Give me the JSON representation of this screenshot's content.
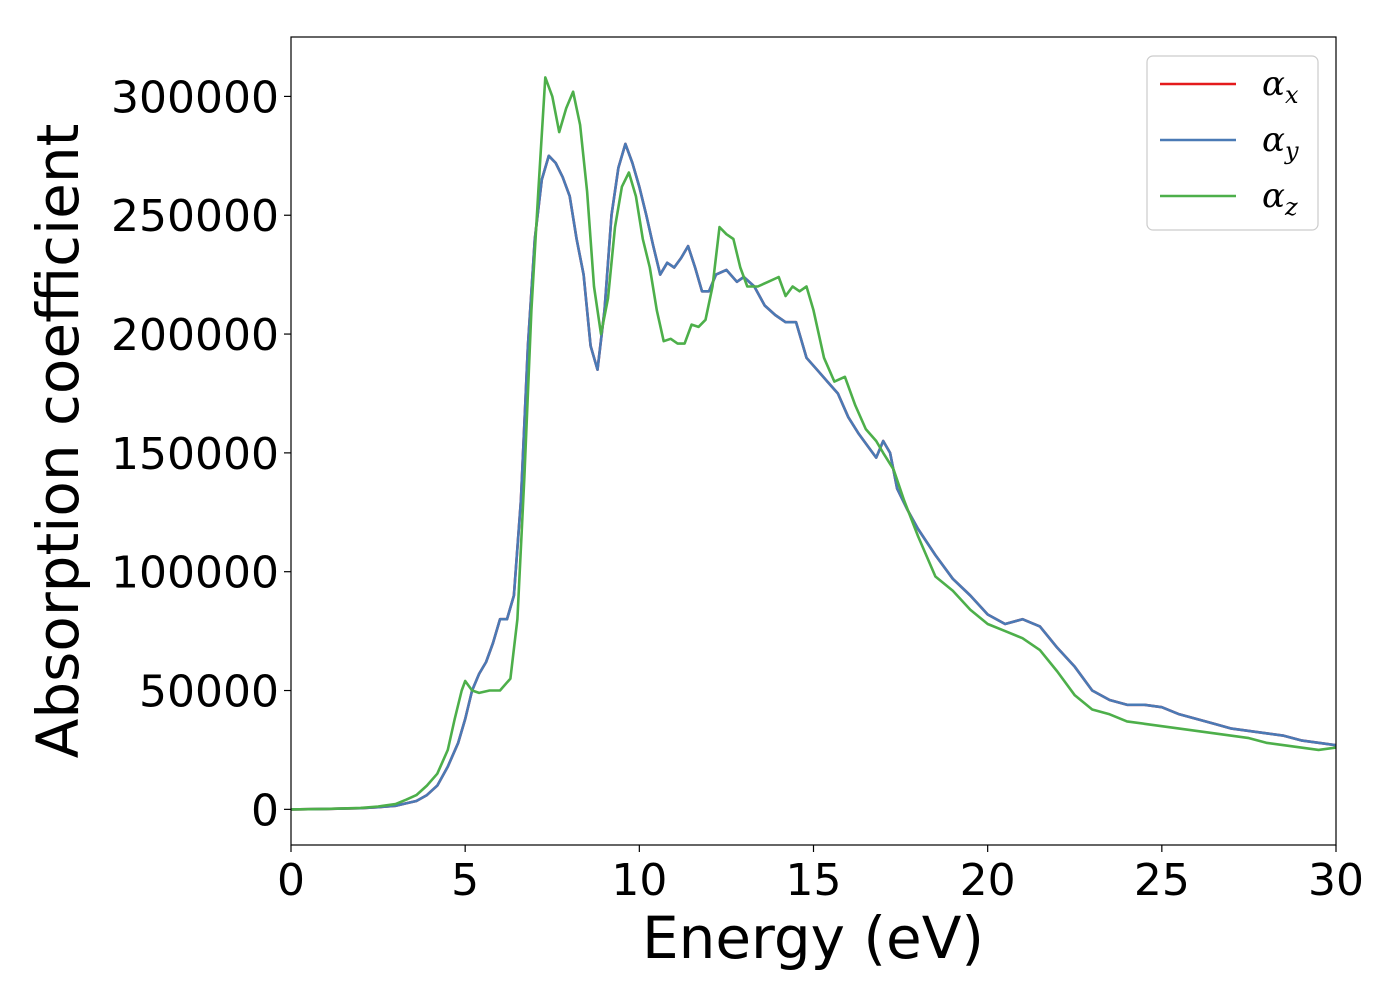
{
  "chart_data": {
    "type": "line",
    "xlabel": "Energy (eV)",
    "ylabel": "Absorption coefficient",
    "xlim": [
      0,
      30
    ],
    "ylim": [
      -15000,
      325000
    ],
    "xticks": [
      0,
      5,
      10,
      15,
      20,
      25,
      30
    ],
    "xtick_labels": [
      "0",
      "5",
      "10",
      "15",
      "20",
      "25",
      "30"
    ],
    "yticks": [
      0,
      50000,
      100000,
      150000,
      200000,
      250000,
      300000
    ],
    "ytick_labels": [
      "0",
      "50000",
      "100000",
      "150000",
      "200000",
      "250000",
      "300000"
    ],
    "grid": false,
    "legend_position": "top-right",
    "series": [
      {
        "name": "α_x",
        "legend_symbol": "α",
        "legend_sub": "x",
        "color": "#e41a1c",
        "x": [
          0,
          1,
          2,
          2.5,
          3,
          3.3,
          3.6,
          3.9,
          4.2,
          4.5,
          4.8,
          5.0,
          5.2,
          5.4,
          5.6,
          5.8,
          6.0,
          6.2,
          6.4,
          6.6,
          6.8,
          7.0,
          7.2,
          7.4,
          7.6,
          7.8,
          8.0,
          8.2,
          8.4,
          8.6,
          8.8,
          9.0,
          9.2,
          9.4,
          9.6,
          9.8,
          10.0,
          10.2,
          10.4,
          10.6,
          10.8,
          11.0,
          11.2,
          11.4,
          11.6,
          11.8,
          12.0,
          12.2,
          12.5,
          12.8,
          13.0,
          13.3,
          13.6,
          13.9,
          14.2,
          14.5,
          14.8,
          15.1,
          15.4,
          15.7,
          16.0,
          16.3,
          16.6,
          16.8,
          17.0,
          17.2,
          17.4,
          17.7,
          18.0,
          18.5,
          19.0,
          19.5,
          20.0,
          20.5,
          21.0,
          21.5,
          22.0,
          22.5,
          23.0,
          23.5,
          24.0,
          24.5,
          25.0,
          25.5,
          26.0,
          26.5,
          27.0,
          27.5,
          28.0,
          28.5,
          29.0,
          29.5,
          30.0
        ],
        "values": [
          0,
          200,
          500,
          900,
          1500,
          2500,
          3500,
          6000,
          10000,
          18000,
          28000,
          38000,
          50000,
          57000,
          62000,
          70000,
          80000,
          80000,
          90000,
          130000,
          195000,
          240000,
          265000,
          275000,
          272000,
          266000,
          258000,
          240000,
          225000,
          195000,
          185000,
          210000,
          250000,
          270000,
          280000,
          272000,
          262000,
          250000,
          237000,
          225000,
          230000,
          228000,
          232000,
          237000,
          228000,
          218000,
          218000,
          225000,
          227000,
          222000,
          224000,
          220000,
          212000,
          208000,
          205000,
          205000,
          190000,
          185000,
          180000,
          175000,
          165000,
          158000,
          152000,
          148000,
          155000,
          150000,
          135000,
          126000,
          118000,
          107000,
          97000,
          90000,
          82000,
          78000,
          80000,
          77000,
          68000,
          60000,
          50000,
          46000,
          44000,
          44000,
          43000,
          40000,
          38000,
          36000,
          34000,
          33000,
          32000,
          31000,
          29000,
          28000,
          27000
        ]
      },
      {
        "name": "α_y",
        "legend_symbol": "α",
        "legend_sub": "y",
        "color": "#4a7ab5",
        "x": [
          0,
          1,
          2,
          2.5,
          3,
          3.3,
          3.6,
          3.9,
          4.2,
          4.5,
          4.8,
          5.0,
          5.2,
          5.4,
          5.6,
          5.8,
          6.0,
          6.2,
          6.4,
          6.6,
          6.8,
          7.0,
          7.2,
          7.4,
          7.6,
          7.8,
          8.0,
          8.2,
          8.4,
          8.6,
          8.8,
          9.0,
          9.2,
          9.4,
          9.6,
          9.8,
          10.0,
          10.2,
          10.4,
          10.6,
          10.8,
          11.0,
          11.2,
          11.4,
          11.6,
          11.8,
          12.0,
          12.2,
          12.5,
          12.8,
          13.0,
          13.3,
          13.6,
          13.9,
          14.2,
          14.5,
          14.8,
          15.1,
          15.4,
          15.7,
          16.0,
          16.3,
          16.6,
          16.8,
          17.0,
          17.2,
          17.4,
          17.7,
          18.0,
          18.5,
          19.0,
          19.5,
          20.0,
          20.5,
          21.0,
          21.5,
          22.0,
          22.5,
          23.0,
          23.5,
          24.0,
          24.5,
          25.0,
          25.5,
          26.0,
          26.5,
          27.0,
          27.5,
          28.0,
          28.5,
          29.0,
          29.5,
          30.0
        ],
        "values": [
          0,
          200,
          500,
          900,
          1500,
          2500,
          3500,
          6000,
          10000,
          18000,
          28000,
          38000,
          50000,
          57000,
          62000,
          70000,
          80000,
          80000,
          90000,
          130000,
          195000,
          240000,
          265000,
          275000,
          272000,
          266000,
          258000,
          240000,
          225000,
          195000,
          185000,
          210000,
          250000,
          270000,
          280000,
          272000,
          262000,
          250000,
          237000,
          225000,
          230000,
          228000,
          232000,
          237000,
          228000,
          218000,
          218000,
          225000,
          227000,
          222000,
          224000,
          220000,
          212000,
          208000,
          205000,
          205000,
          190000,
          185000,
          180000,
          175000,
          165000,
          158000,
          152000,
          148000,
          155000,
          150000,
          135000,
          126000,
          118000,
          107000,
          97000,
          90000,
          82000,
          78000,
          80000,
          77000,
          68000,
          60000,
          50000,
          46000,
          44000,
          44000,
          43000,
          40000,
          38000,
          36000,
          34000,
          33000,
          32000,
          31000,
          29000,
          28000,
          27000
        ]
      },
      {
        "name": "α_z",
        "legend_symbol": "α",
        "legend_sub": "z",
        "color": "#4daf4a",
        "x": [
          0,
          1,
          2,
          2.5,
          3,
          3.3,
          3.6,
          3.9,
          4.2,
          4.5,
          4.7,
          4.9,
          5.0,
          5.2,
          5.4,
          5.7,
          6.0,
          6.3,
          6.5,
          6.7,
          6.9,
          7.1,
          7.3,
          7.5,
          7.7,
          7.9,
          8.1,
          8.3,
          8.5,
          8.7,
          8.9,
          9.1,
          9.3,
          9.5,
          9.7,
          9.9,
          10.1,
          10.3,
          10.5,
          10.7,
          10.9,
          11.1,
          11.3,
          11.5,
          11.7,
          11.9,
          12.1,
          12.3,
          12.5,
          12.7,
          12.9,
          13.1,
          13.4,
          13.7,
          14.0,
          14.2,
          14.4,
          14.6,
          14.8,
          15.0,
          15.3,
          15.6,
          15.9,
          16.2,
          16.5,
          16.8,
          17.0,
          17.3,
          17.6,
          18.0,
          18.5,
          19.0,
          19.5,
          20.0,
          20.5,
          21.0,
          21.5,
          22.0,
          22.5,
          23.0,
          23.5,
          24.0,
          24.5,
          25.0,
          25.5,
          26.0,
          26.5,
          27.0,
          27.5,
          28.0,
          28.5,
          29.0,
          29.5,
          30.0
        ],
        "values": [
          0,
          200,
          600,
          1200,
          2200,
          4000,
          6000,
          10000,
          15000,
          25000,
          38000,
          50000,
          54000,
          50000,
          49000,
          50000,
          50000,
          55000,
          80000,
          140000,
          210000,
          260000,
          308000,
          300000,
          285000,
          295000,
          302000,
          288000,
          260000,
          220000,
          200000,
          215000,
          245000,
          262000,
          268000,
          258000,
          240000,
          228000,
          210000,
          197000,
          198000,
          196000,
          196000,
          204000,
          203000,
          206000,
          220000,
          245000,
          242000,
          240000,
          228000,
          220000,
          220000,
          222000,
          224000,
          216000,
          220000,
          218000,
          220000,
          210000,
          190000,
          180000,
          182000,
          170000,
          160000,
          155000,
          150000,
          143000,
          130000,
          115000,
          98000,
          92000,
          84000,
          78000,
          75000,
          72000,
          67000,
          58000,
          48000,
          42000,
          40000,
          37000,
          36000,
          35000,
          34000,
          33000,
          32000,
          31000,
          30000,
          28000,
          27000,
          26000,
          25000,
          26000
        ]
      }
    ]
  }
}
